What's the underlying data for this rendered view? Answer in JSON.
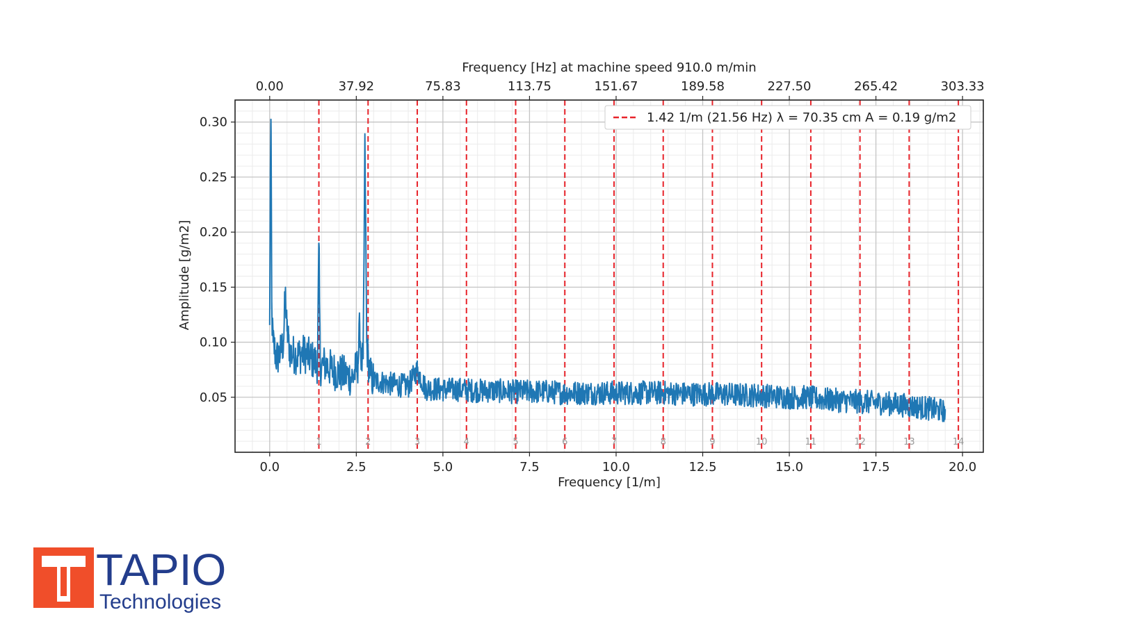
{
  "chart_data": {
    "type": "line",
    "top_xlabel": "Frequency [Hz] at machine speed 910.0 m/min",
    "xlabel": "Frequency [1/m]",
    "ylabel": "Amplitude [g/m2]",
    "xlim": [
      -1.0,
      20.6
    ],
    "ylim": [
      0.0,
      0.32
    ],
    "x_ticks": [
      0.0,
      2.5,
      5.0,
      7.5,
      10.0,
      12.5,
      15.0,
      17.5,
      20.0
    ],
    "x_tick_labels": [
      "0.0",
      "2.5",
      "5.0",
      "7.5",
      "10.0",
      "12.5",
      "15.0",
      "17.5",
      "20.0"
    ],
    "y_ticks": [
      0.05,
      0.1,
      0.15,
      0.2,
      0.25,
      0.3
    ],
    "y_tick_labels": [
      "0.05",
      "0.10",
      "0.15",
      "0.20",
      "0.25",
      "0.30"
    ],
    "top_tick_labels": [
      "0.00",
      "37.92",
      "75.83",
      "113.75",
      "151.67",
      "189.58",
      "227.50",
      "265.42",
      "303.33"
    ],
    "grid": true,
    "minor_grid": true,
    "legend_position": "top-right",
    "legend_entries": [
      {
        "label": "1.42 1/m (21.56 Hz) λ = 70.35 cm A = 0.19 g/m2",
        "style": "dashed",
        "color": "#e8232a"
      }
    ],
    "harmonic_lines": {
      "fundamental": 1.42,
      "labels": [
        "1",
        "2",
        "3",
        "4",
        "5",
        "6",
        "7",
        "8",
        "9",
        "10",
        "11",
        "12",
        "13",
        "14"
      ],
      "x": [
        1.42,
        2.84,
        4.26,
        5.68,
        7.1,
        8.52,
        9.94,
        11.36,
        12.78,
        14.2,
        15.62,
        17.04,
        18.46,
        19.88
      ]
    },
    "series": [
      {
        "color": "#1f77b4",
        "x": [
          0.0,
          0.02,
          0.04,
          0.06,
          0.08,
          0.1,
          0.2,
          0.3,
          0.4,
          0.45,
          0.5,
          0.55,
          0.6,
          0.8,
          1.0,
          1.2,
          1.38,
          1.42,
          1.46,
          1.6,
          1.8,
          2.0,
          2.2,
          2.4,
          2.55,
          2.6,
          2.65,
          2.7,
          2.75,
          2.8,
          2.84,
          2.9,
          3.0,
          3.2,
          3.5,
          4.0,
          4.26,
          4.5,
          5.0,
          5.5,
          6.0,
          6.5,
          7.0,
          7.5,
          8.0,
          8.5,
          9.0,
          9.5,
          10.0,
          10.5,
          11.0,
          11.5,
          12.0,
          12.5,
          13.0,
          13.5,
          14.0,
          14.5,
          15.0,
          15.5,
          16.0,
          16.5,
          17.0,
          17.5,
          18.0,
          18.5,
          19.0,
          19.5
        ],
        "y": [
          0.11,
          0.255,
          0.292,
          0.13,
          0.11,
          0.1,
          0.085,
          0.09,
          0.1,
          0.145,
          0.11,
          0.1,
          0.09,
          0.088,
          0.09,
          0.085,
          0.08,
          0.19,
          0.078,
          0.08,
          0.075,
          0.072,
          0.07,
          0.068,
          0.08,
          0.115,
          0.08,
          0.085,
          0.283,
          0.1,
          0.085,
          0.07,
          0.065,
          0.064,
          0.062,
          0.06,
          0.075,
          0.058,
          0.057,
          0.057,
          0.056,
          0.056,
          0.055,
          0.055,
          0.055,
          0.054,
          0.054,
          0.054,
          0.054,
          0.054,
          0.054,
          0.054,
          0.053,
          0.053,
          0.053,
          0.052,
          0.052,
          0.051,
          0.05,
          0.05,
          0.048,
          0.047,
          0.046,
          0.045,
          0.044,
          0.042,
          0.04,
          0.037
        ]
      }
    ]
  },
  "logo": {
    "name": "TAPIO",
    "tagline": "Technologies",
    "color_blue": "#233d8c",
    "color_red": "#f04e2a"
  }
}
